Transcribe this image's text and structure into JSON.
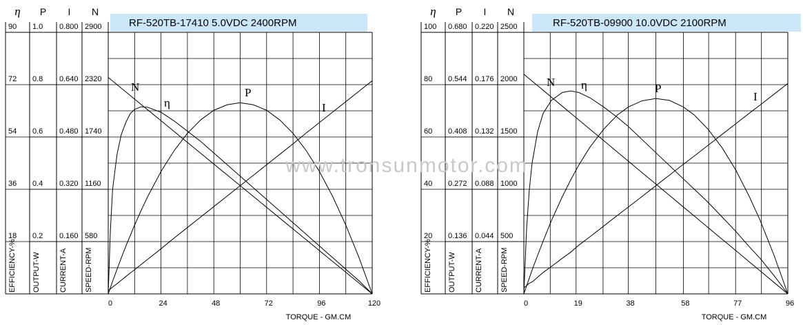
{
  "watermark": "www.tronsunmotor.com",
  "chart_data": [
    {
      "type": "line",
      "title": "RF-520TB-17410    5.0VDC   2400RPM",
      "title_background": "#cce8f8",
      "x_label": "TORQUE - GM.CM",
      "grid": true,
      "xlim": [
        0,
        120
      ],
      "xticks": [
        0,
        24,
        48,
        72,
        96,
        120
      ],
      "axes": [
        {
          "symbol": "η",
          "label": "EFFICIENCY-%",
          "ylim": [
            0,
            90
          ],
          "yticks": [
            18,
            36,
            54,
            72,
            90
          ]
        },
        {
          "symbol": "P",
          "label": "OUTPUT-W",
          "ylim": [
            0,
            1
          ],
          "yticks": [
            0.2,
            0.4,
            0.6,
            0.8,
            {
              "value": 1,
              "label": "1.0"
            }
          ]
        },
        {
          "symbol": "I",
          "label": "CURRENT-A",
          "ylim": [
            0,
            0.8
          ],
          "yticks": [
            {
              "value": 0.16,
              "label": "0.160"
            },
            {
              "value": 0.32,
              "label": "0.320"
            },
            {
              "value": 0.48,
              "label": "0.480"
            },
            {
              "value": 0.64,
              "label": "0.640"
            },
            {
              "value": 0.8,
              "label": "0.800"
            }
          ]
        },
        {
          "symbol": "N",
          "label": "SPEED-RPM",
          "ylim": [
            0,
            2900
          ],
          "yticks": [
            580,
            1160,
            1740,
            2320,
            2900
          ]
        }
      ],
      "x": [
        0,
        1,
        2,
        4,
        6,
        8,
        10,
        12,
        15,
        18,
        24,
        30,
        36,
        42,
        48,
        54,
        60,
        66,
        72,
        78,
        84,
        90,
        96,
        102,
        108,
        114,
        120
      ],
      "series": [
        {
          "name": "N",
          "axis": 3,
          "color": "#000000",
          "values": [
            2400,
            2380,
            2360,
            2320,
            2280,
            2240,
            2200,
            2160,
            2100,
            2040,
            1920,
            1800,
            1680,
            1560,
            1440,
            1320,
            1200,
            1080,
            960,
            840,
            720,
            600,
            480,
            360,
            240,
            120,
            0
          ]
        },
        {
          "name": "η",
          "axis": 0,
          "color": "#000000",
          "values": [
            0,
            22,
            36,
            48,
            55,
            59,
            62,
            63.5,
            64.4,
            64.2,
            62.5,
            59.5,
            56,
            52.5,
            48.5,
            44.5,
            40.5,
            36.5,
            32.5,
            28.5,
            24.5,
            20.5,
            16.5,
            12.5,
            8.5,
            4.5,
            0
          ]
        },
        {
          "name": "P",
          "axis": 1,
          "color": "#000000",
          "values": [
            0,
            0.024,
            0.048,
            0.094,
            0.139,
            0.182,
            0.223,
            0.263,
            0.32,
            0.373,
            0.468,
            0.548,
            0.614,
            0.665,
            0.702,
            0.723,
            0.731,
            0.723,
            0.702,
            0.665,
            0.614,
            0.548,
            0.468,
            0.373,
            0.263,
            0.139,
            0
          ]
        },
        {
          "name": "I",
          "axis": 2,
          "color": "#000000",
          "values": [
            0.01,
            0.015,
            0.021,
            0.031,
            0.042,
            0.053,
            0.064,
            0.074,
            0.09,
            0.106,
            0.138,
            0.171,
            0.203,
            0.235,
            0.267,
            0.299,
            0.331,
            0.363,
            0.395,
            0.427,
            0.459,
            0.492,
            0.524,
            0.556,
            0.588,
            0.62,
            0.652
          ]
        }
      ]
    },
    {
      "type": "line",
      "title": "RF-520TB-09900   10.0VDC  2100RPM",
      "title_background": "#cce8f8",
      "x_label": "TORQUE - GM.CM",
      "grid": true,
      "xlim": [
        0,
        96
      ],
      "xticks": [
        0,
        19,
        38,
        58,
        77,
        96
      ],
      "axes": [
        {
          "symbol": "η",
          "label": "EFFICIENCY-%",
          "ylim": [
            0,
            100
          ],
          "yticks": [
            20,
            40,
            60,
            80,
            100
          ]
        },
        {
          "symbol": "P",
          "label": "OUTPUT-W",
          "ylim": [
            0,
            0.68
          ],
          "yticks": [
            0.136,
            0.272,
            0.408,
            0.544,
            {
              "value": 0.68,
              "label": "0.680"
            }
          ]
        },
        {
          "symbol": "I",
          "label": "CURRENT-A",
          "ylim": [
            0,
            0.22
          ],
          "yticks": [
            0.044,
            0.088,
            0.132,
            0.176,
            {
              "value": 0.22,
              "label": "0.220"
            }
          ]
        },
        {
          "symbol": "N",
          "label": "SPEED-RPM",
          "ylim": [
            0,
            2500
          ],
          "yticks": [
            500,
            1000,
            1500,
            2000,
            2500
          ]
        }
      ],
      "x": [
        0,
        1,
        2,
        3,
        5,
        7,
        10,
        14,
        17,
        20,
        24,
        29,
        34,
        38,
        43,
        48,
        53,
        58,
        62,
        67,
        72,
        77,
        82,
        86,
        91,
        96
      ],
      "series": [
        {
          "name": "N",
          "axis": 3,
          "color": "#000000",
          "values": [
            2100,
            2078,
            2056,
            2034,
            1991,
            1947,
            1881,
            1794,
            1728,
            1663,
            1575,
            1466,
            1356,
            1269,
            1159,
            1050,
            941,
            831,
            744,
            634,
            525,
            416,
            306,
            219,
            109,
            0
          ]
        },
        {
          "name": "η",
          "axis": 0,
          "color": "#000000",
          "values": [
            0,
            25,
            40,
            50,
            62,
            69,
            74,
            77,
            77.6,
            77,
            75,
            71.5,
            67.5,
            64,
            59,
            54,
            49,
            44,
            40,
            35,
            29.5,
            24,
            18,
            13.5,
            7,
            0
          ]
        },
        {
          "name": "P",
          "axis": 1,
          "color": "#000000",
          "values": [
            0,
            0.021,
            0.041,
            0.062,
            0.1,
            0.137,
            0.19,
            0.253,
            0.296,
            0.335,
            0.381,
            0.428,
            0.465,
            0.486,
            0.502,
            0.508,
            0.503,
            0.486,
            0.465,
            0.428,
            0.381,
            0.323,
            0.253,
            0.19,
            0.1,
            0
          ]
        },
        {
          "name": "I",
          "axis": 2,
          "color": "#000000",
          "values": [
            0.005,
            0.007,
            0.009,
            0.01,
            0.014,
            0.018,
            0.023,
            0.03,
            0.035,
            0.041,
            0.048,
            0.057,
            0.066,
            0.073,
            0.082,
            0.091,
            0.1,
            0.109,
            0.116,
            0.125,
            0.134,
            0.143,
            0.152,
            0.159,
            0.168,
            0.177
          ]
        }
      ]
    }
  ]
}
